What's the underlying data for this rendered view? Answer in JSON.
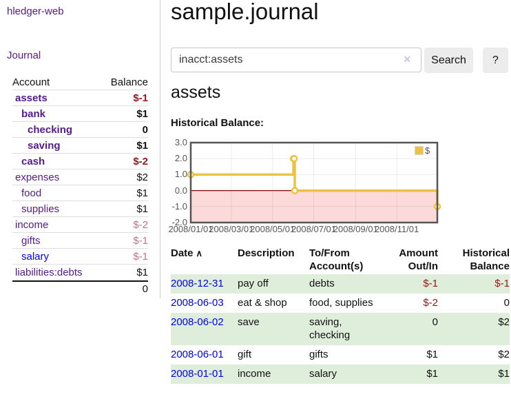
{
  "colors": {
    "purple": "#551a8b",
    "blue": "#0000ee",
    "neg_strong": "#961717",
    "neg_soft": "#c4757f",
    "stripe_green": "#dfeeda",
    "chart_line": "#EDC240",
    "chart_border": "#545454",
    "chart_negative_region": "#fcdada",
    "chart_zero_line": "#800000"
  },
  "sidebar": {
    "app_title": "hledger-web",
    "journal_link": "Journal",
    "accounts_table": {
      "headers": {
        "account": "Account",
        "balance": "Balance"
      },
      "rows": [
        {
          "name": "assets",
          "balance": "$-1",
          "depth": 1,
          "bold": true,
          "name_color": "purple",
          "neg": "neg-strong"
        },
        {
          "name": "bank",
          "balance": "$1",
          "depth": 2,
          "bold": true,
          "name_color": "purple",
          "neg": null
        },
        {
          "name": "checking",
          "balance": "0",
          "depth": 3,
          "bold": true,
          "name_color": "purple",
          "neg": null
        },
        {
          "name": "saving",
          "balance": "$1",
          "depth": 3,
          "bold": true,
          "name_color": "purple",
          "neg": null
        },
        {
          "name": "cash",
          "balance": "$-2",
          "depth": 2,
          "bold": true,
          "name_color": "purple",
          "neg": "neg-strong"
        },
        {
          "name": "expenses",
          "balance": "$2",
          "depth": 1,
          "bold": false,
          "name_color": "purple",
          "neg": null
        },
        {
          "name": "food",
          "balance": "$1",
          "depth": 2,
          "bold": false,
          "name_color": "purple",
          "neg": null
        },
        {
          "name": "supplies",
          "balance": "$1",
          "depth": 2,
          "bold": false,
          "name_color": "purple",
          "neg": null
        },
        {
          "name": "income",
          "balance": "$-2",
          "depth": 1,
          "bold": false,
          "name_color": "purple",
          "neg": "neg-soft"
        },
        {
          "name": "gifts",
          "balance": "$-1",
          "depth": 2,
          "bold": false,
          "name_color": "purple",
          "neg": "neg-soft"
        },
        {
          "name": "salary",
          "balance": "$-1",
          "depth": 2,
          "bold": false,
          "name_color": "blue",
          "neg": "neg-soft"
        },
        {
          "name": "liabilities:debts",
          "balance": "$1",
          "depth": 1,
          "bold": false,
          "name_color": "purple",
          "neg": null
        }
      ],
      "total": "0"
    }
  },
  "main": {
    "title": "sample.journal",
    "search": {
      "value": "inacct:assets",
      "clear_icon": "×",
      "search_button": "Search",
      "help_button": "?"
    },
    "account_heading": "assets",
    "chart_label": "Historical Balance:"
  },
  "chart_data": {
    "type": "line",
    "title": "Historical Balance of assets",
    "steps": true,
    "xlim": [
      "2008-01-01",
      "2008-12-31"
    ],
    "ylim": [
      -2,
      3
    ],
    "series": [
      {
        "name": "$",
        "color": "#EDC240",
        "points": [
          [
            "2008-01-01",
            1
          ],
          [
            "2008-06-01",
            2
          ],
          [
            "2008-06-02",
            2
          ],
          [
            "2008-06-03",
            0
          ],
          [
            "2008-12-31",
            -1
          ]
        ]
      }
    ],
    "x_ticks": [
      {
        "label": "2008/01/01",
        "date": "2008-01-01"
      },
      {
        "label": "2008/03/01",
        "date": "2008-03-01"
      },
      {
        "label": "2008/05/01",
        "date": "2008-05-01"
      },
      {
        "label": "2008/07/01",
        "date": "2008-07-01"
      },
      {
        "label": "2008/09/01",
        "date": "2008-09-01"
      },
      {
        "label": "2008/11/01",
        "date": "2008-11-01"
      }
    ],
    "y_ticks": [
      {
        "label": "3.0",
        "value": 3
      },
      {
        "label": "2.0",
        "value": 2
      },
      {
        "label": "1.0",
        "value": 1
      },
      {
        "label": "0.0",
        "value": 0
      },
      {
        "label": "-1.0",
        "value": -1
      },
      {
        "label": "-2.0",
        "value": -2
      }
    ],
    "legend": {
      "label": "$",
      "position": "top-right"
    },
    "grid": true
  },
  "register": {
    "sort_icon": "∧",
    "headers": [
      {
        "id": "date",
        "lines": [
          "Date"
        ],
        "align": "left",
        "sortable": true
      },
      {
        "id": "description",
        "lines": [
          "Description"
        ],
        "align": "left"
      },
      {
        "id": "accounts",
        "lines": [
          "To/From",
          "Account(s)"
        ],
        "align": "left"
      },
      {
        "id": "amount",
        "lines": [
          "Amount",
          "Out/In"
        ],
        "align": "right"
      },
      {
        "id": "balance",
        "lines": [
          "Historical",
          "Balance"
        ],
        "align": "right"
      }
    ],
    "rows": [
      {
        "date": "2008-12-31",
        "description": "pay off",
        "accounts": "debts",
        "amount": "$-1",
        "amount_negative": true,
        "balance": "$-1",
        "balance_negative": true
      },
      {
        "date": "2008-06-03",
        "description": "eat & shop",
        "accounts": "food, supplies",
        "amount": "$-2",
        "amount_negative": true,
        "balance": "0",
        "balance_negative": false
      },
      {
        "date": "2008-06-02",
        "description": "save",
        "accounts": "saving, checking",
        "amount": "0",
        "amount_negative": false,
        "balance": "$2",
        "balance_negative": false
      },
      {
        "date": "2008-06-01",
        "description": "gift",
        "accounts": "gifts",
        "amount": "$1",
        "amount_negative": false,
        "balance": "$2",
        "balance_negative": false
      },
      {
        "date": "2008-01-01",
        "description": "income",
        "accounts": "salary",
        "amount": "$1",
        "amount_negative": false,
        "balance": "$1",
        "balance_negative": false
      }
    ]
  }
}
